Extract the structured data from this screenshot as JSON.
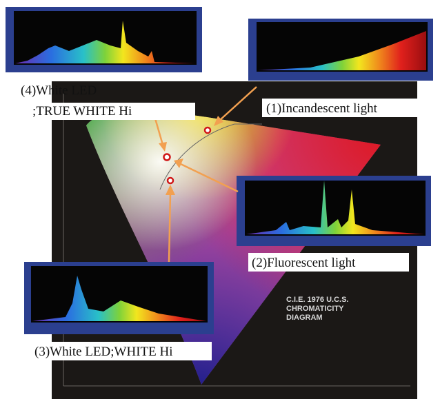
{
  "annotations": {
    "incandescent": "(1)Incandescent light",
    "fluorescent": "(2)Fluorescent light",
    "white_led": "(3)White LED;WHITE Hi",
    "true_white_line1": "(4)White LED",
    "true_white_line2": ";TRUE WHITE Hi"
  },
  "diagram_title": [
    "C.I.E. 1976 U.C.S.",
    "CHROMATICITY",
    "DIAGRAM"
  ]
}
